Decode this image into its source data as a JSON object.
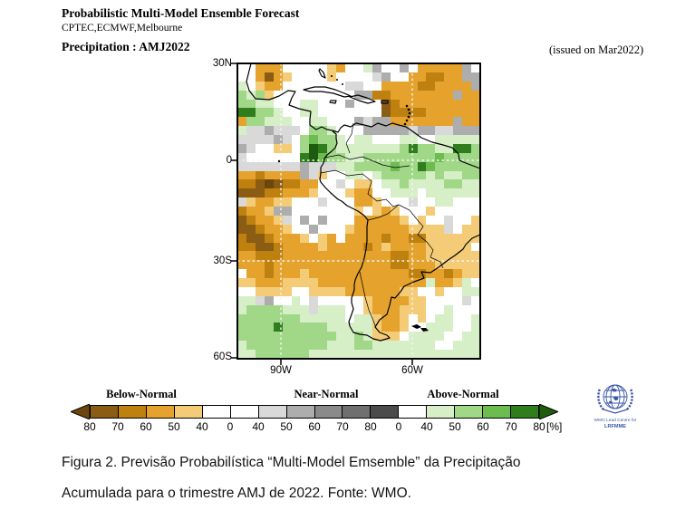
{
  "page": {
    "background": "#ffffff"
  },
  "header": {
    "title": "Probabilistic Multi-Model Ensemble Forecast",
    "models": "CPTEC,ECMWF,Melbourne",
    "variable": "Precipitation : AMJ2022",
    "issued": "(issued on Mar2022)"
  },
  "map": {
    "y_ticks": [
      "30N",
      "0",
      "30S",
      "60S"
    ],
    "x_ticks": [
      "90W",
      "60W"
    ]
  },
  "colorbar": {
    "group_labels": [
      "Below-Normal",
      "Near-Normal",
      "Above-Normal"
    ],
    "tick_labels": [
      "80",
      "70",
      "60",
      "50",
      "40",
      "0",
      "40",
      "50",
      "60",
      "70",
      "80",
      "0",
      "40",
      "50",
      "60",
      "70",
      "80"
    ],
    "unit_label": "[%]",
    "segments": [
      "#8A5C14",
      "#BE8110",
      "#E5A22C",
      "#F4CC78",
      "#FFFFFF",
      "#FFFFFF",
      "#D9D9D9",
      "#ADADAD",
      "#8A8A8A",
      "#6F6F6F",
      "#4B4B4B",
      "#FFFFFF",
      "#D6EFC7",
      "#A0D888",
      "#6CBC50",
      "#2F7D1D"
    ],
    "left_arrow_color": "#6E450D",
    "right_arrow_color": "#1D5C0F"
  },
  "logo": {
    "line1": "WMO Lead Centre for",
    "line2": "LRFMME",
    "color": "#3A57A7"
  },
  "caption": {
    "line1": "Figura 2. Previsão Probabilística “Multi-Model Emsemble” da Precipitação",
    "line2": "Acumulada para o trimestre AMJ de 2022. Fonte: WMO."
  },
  "chart_data": {
    "type": "heatmap",
    "title": "Probabilistic Multi-Model Ensemble Forecast — Precipitation AMJ2022",
    "geo_extent": {
      "lon_left": "100W",
      "lon_right": "44W",
      "lat_top": "30N",
      "lat_bottom": "61S"
    },
    "x_tick_labels": [
      "90W",
      "60W"
    ],
    "y_tick_labels": [
      "30N",
      "0",
      "30S",
      "60S"
    ],
    "categories": [
      "Below-Normal",
      "Near-Normal",
      "Above-Normal"
    ],
    "probability_bins_percent": [
      "40",
      "50",
      "60",
      "70",
      "80"
    ],
    "grid_cols": 27,
    "grid_rows": 33,
    "cell_colors": {
      ".": "#FFFFFF",
      "a": "#F4CC78",
      "b": "#E5A22C",
      "c": "#BE8110",
      "d": "#8A5C14",
      "e": "#6E450D",
      "f": "#D9D9D9",
      "g": "#ADADAD",
      "h": "#8A8A8A",
      "i": "#6F6F6F",
      "j": "#4B4B4B",
      "p": "#D6EFC7",
      "q": "#A0D888",
      "r": "#6CBC50",
      "s": "#2F7D1D",
      "t": "#1D5C0F"
    },
    "cell_meanings": {
      ".": "no dominant tercile (<40%)",
      "a": "below-normal 40-50%",
      "b": "below-normal 50-60%",
      "c": "below-normal 60-70%",
      "d": "below-normal 70-80%",
      "e": "below-normal >80%",
      "f": "near-normal 40-50%",
      "g": "near-normal 50-60%",
      "h": "near-normal 60-70%",
      "i": "near-normal 70-80%",
      "j": "near-normal >80%",
      "p": "above-normal 40-50%",
      "q": "above-normal 50-60%",
      "r": "above-normal 60-70%",
      "s": "above-normal 70-80%",
      "t": "above-normal >80%"
    },
    "rows": [
      "..bbb.....ab..pg..g.bbbbbg.",
      "..bdba....a....fg..bbccbbgg",
      "p.abb.......ff..bbbbccbbbbg",
      "qpqa.........ggccbbbbbbbgbb",
      "qqpp...pp...g...dcbbbbbbbbb",
      "ssqqp..pp.......dccccbbbbbb",
      "bqqppp..pp...gfggbbbbbbbgbb",
      "pffgfff.qqp...gggggfggffggg",
      "ffffgf.qrqqp.pp...pp..ppppp",
      "gf..aa.qtsqpppppppqsqqppssq",
      "f......strqqppqqqqqqqqrqqqq",
      "fffffffgfffppqqqqrqqsrqqqqq",
      "bbcbbbbgfa..pp.pqqqqqpqppqq",
      "ccdedccbb..f.aa.ppqppppqqpp",
      "dddccbbba...abb..ppp.pppppp",
      "fabbaa...f...bba...f..pp...",
      "cbbagg.......a.aba...a.....",
      "dcbbaf.g.g...bbbbba.a..f..a",
      "ddcbba..g...abbbbbbaaaaf.aa",
      "cddcbbba.ab.bbbbcbbccaaaaaa",
      "ccddcbbbbabbbbcbabbbbaaaaa.",
      "bbcccbbbbbbbbbbbbccbbaaaaaa",
      "bbbcbbbbbbbbbbbbbccbbbaaaaa",
      ".bbcbbbabbbbbbbbbbbccbbcbaa",
      "aabbbaaaabbbbbbbbbbbbpbbap.",
      "..aaaa..aaaabbbbbbaa..a..pp",
      "ppfg..p.f.....abbbbaa....f.",
      "pqqqqpppfppp..abbbaaa..p...",
      "qqqqqqqppppp.ppabba.a.pp..p",
      "qqqqsqqqqqpppppabba..ppp..p",
      "qqqqqqqqqqqppqpaaa.pppp..pp",
      "pqqqqqqqqqpppqqppppppp..ppp",
      "ppqqqqqqppppppppppppppppppp"
    ]
  }
}
